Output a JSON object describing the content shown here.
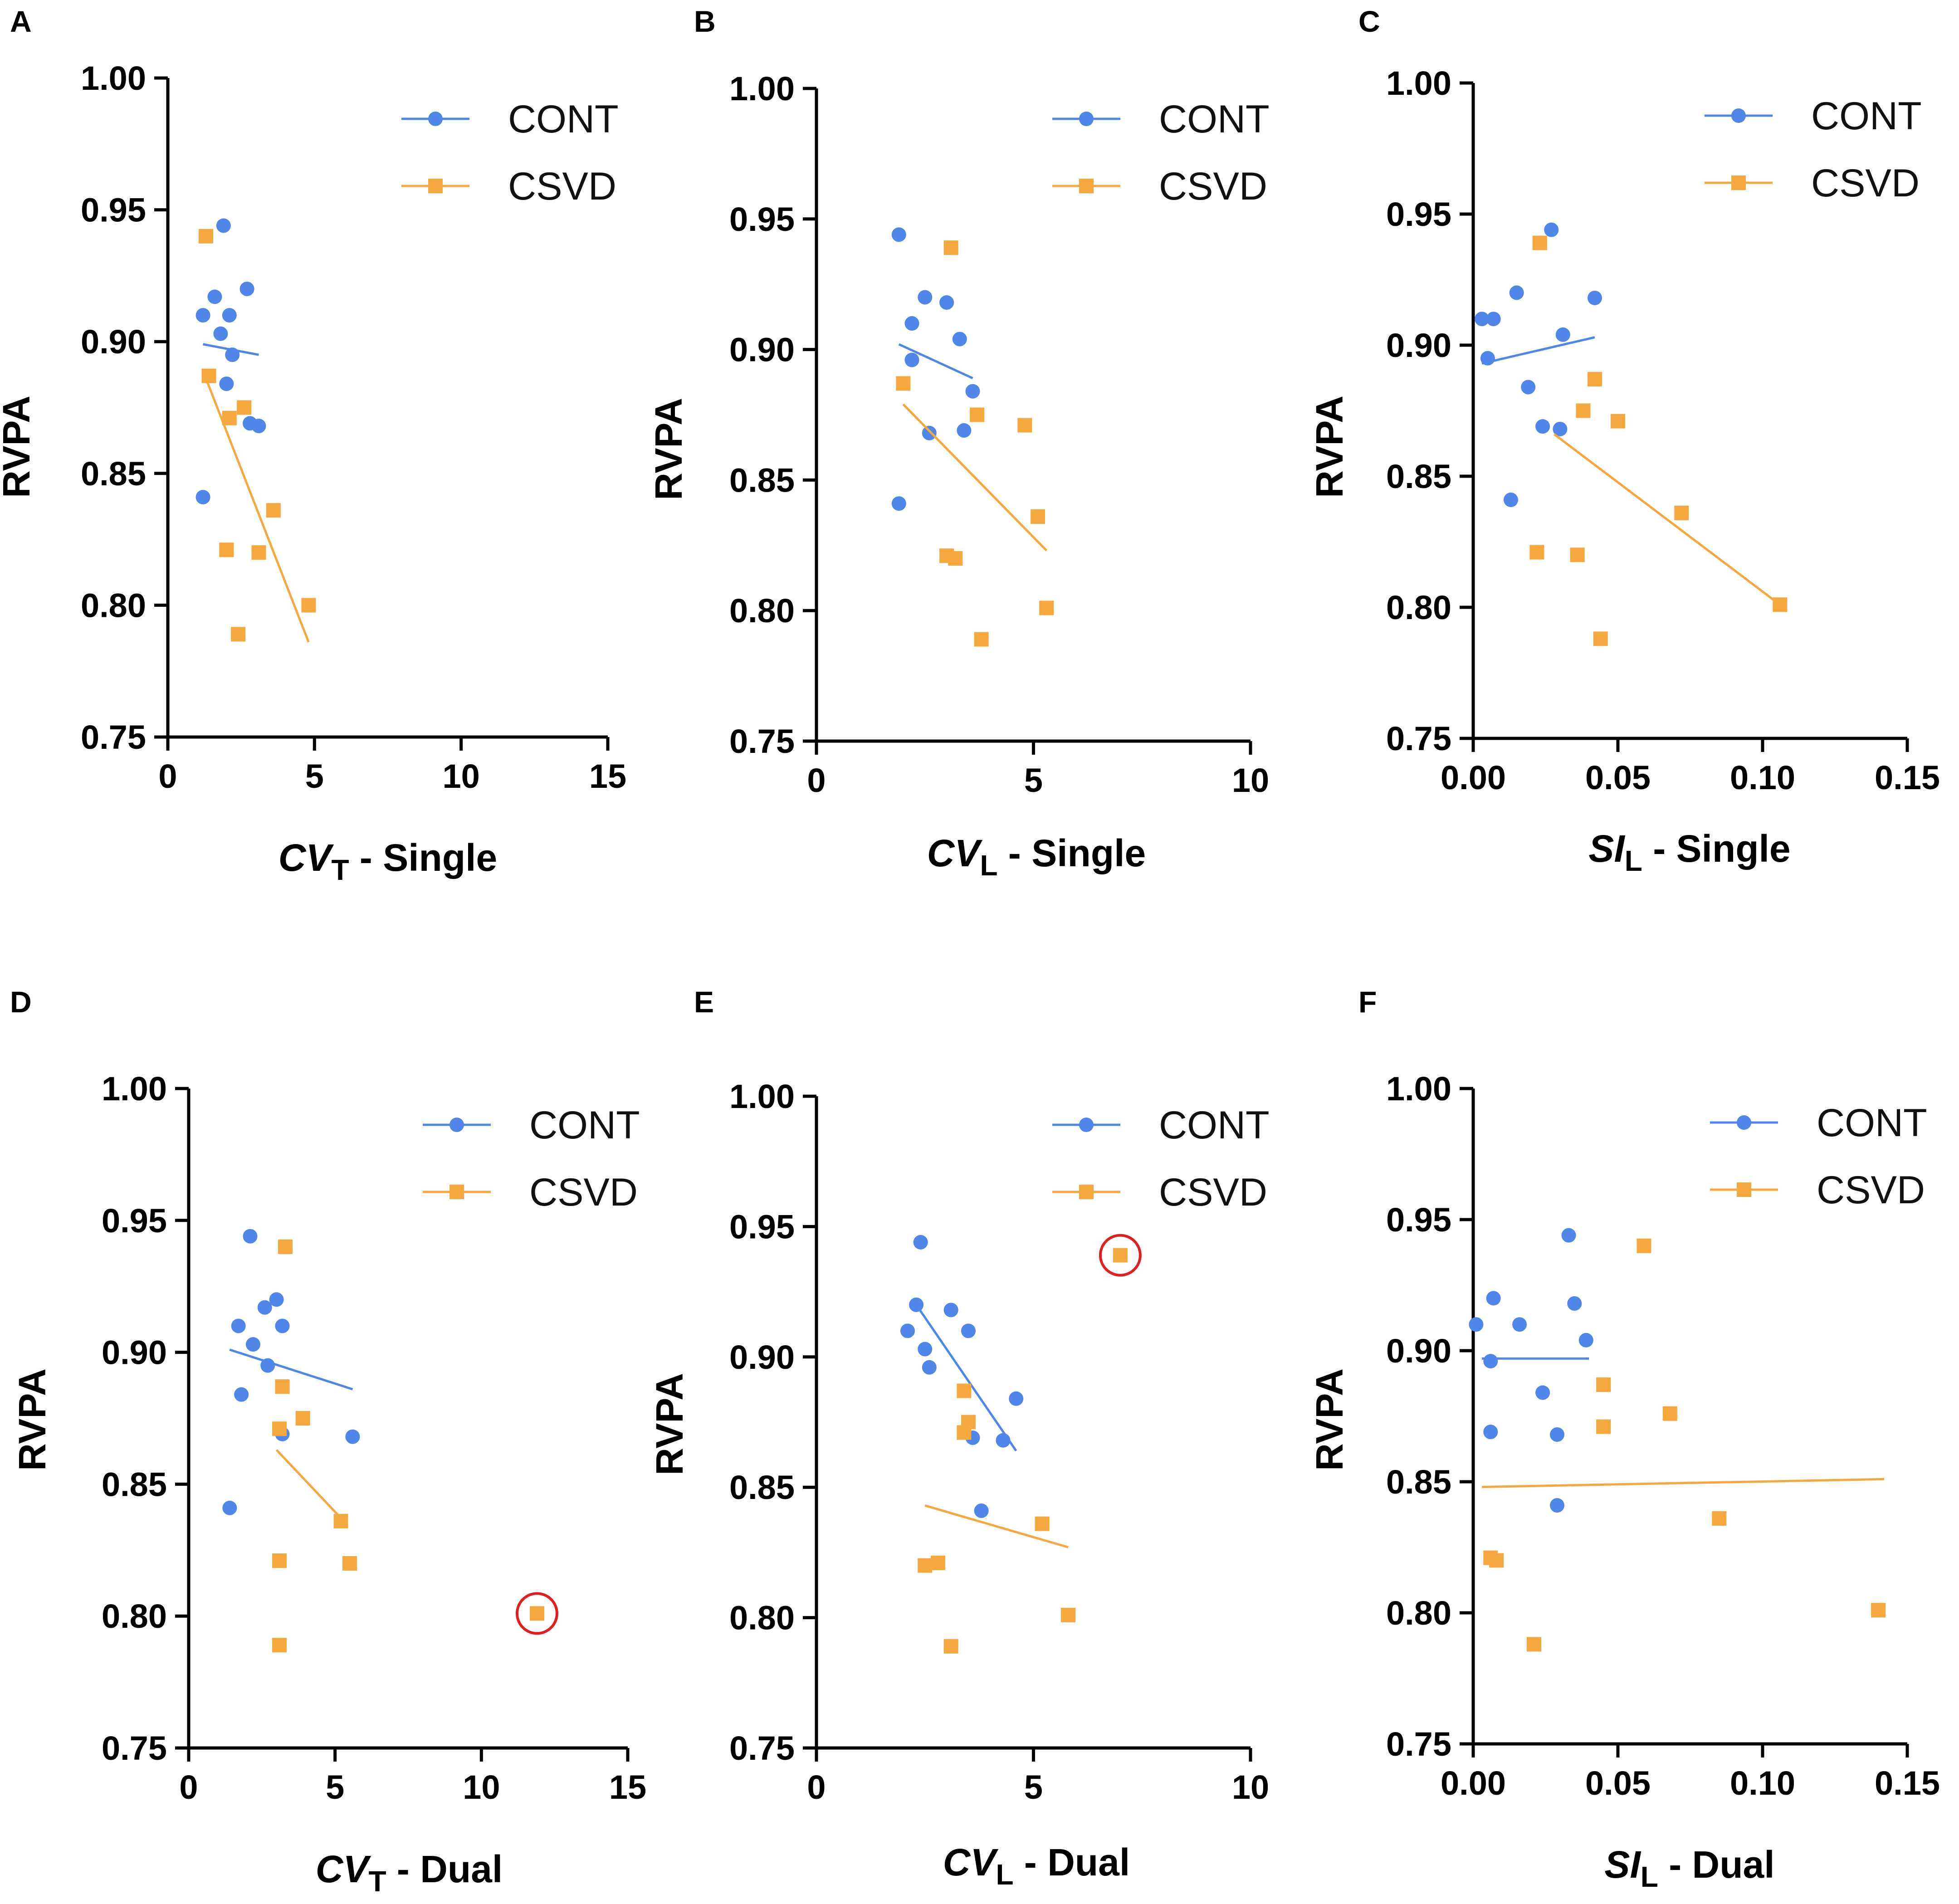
{
  "colors": {
    "cont": "#4f86e8",
    "csvd": "#f5a83e",
    "highlight": "#e02020",
    "axis": "#000000"
  },
  "chart_data": [
    {
      "panel": "A",
      "type": "scatter",
      "ylabel": "RVPA",
      "xlabel_var": "CV",
      "xlabel_sub": "T",
      "xlabel_suffix": " - Single",
      "xlim": [
        0,
        15
      ],
      "ylim": [
        0.75,
        1.0
      ],
      "xticks": [
        0,
        5,
        10,
        15
      ],
      "xtick_labels": [
        "0",
        "5",
        "10",
        "15"
      ],
      "yticks": [
        0.75,
        0.8,
        0.85,
        0.9,
        0.95,
        1.0
      ],
      "ytick_labels": [
        "0.75",
        "0.80",
        "0.85",
        "0.90",
        "0.95",
        "1.00"
      ],
      "legend": [
        "CONT",
        "CSVD"
      ],
      "legend_position": "top-right",
      "series": [
        {
          "name": "CONT",
          "marker": "circle",
          "points": [
            [
              1.2,
              0.91
            ],
            [
              1.6,
              0.917
            ],
            [
              1.9,
              0.944
            ],
            [
              1.8,
              0.903
            ],
            [
              2.1,
              0.91
            ],
            [
              2.7,
              0.92
            ],
            [
              2.2,
              0.895
            ],
            [
              2.0,
              0.884
            ],
            [
              2.8,
              0.869
            ],
            [
              3.1,
              0.868
            ],
            [
              1.2,
              0.841
            ]
          ],
          "fit": [
            [
              1.2,
              0.899
            ],
            [
              3.1,
              0.895
            ]
          ]
        },
        {
          "name": "CSVD",
          "marker": "square",
          "points": [
            [
              1.3,
              0.94
            ],
            [
              1.4,
              0.887
            ],
            [
              2.1,
              0.871
            ],
            [
              2.6,
              0.875
            ],
            [
              2.0,
              0.821
            ],
            [
              3.1,
              0.82
            ],
            [
              3.6,
              0.836
            ],
            [
              4.8,
              0.8
            ],
            [
              2.4,
              0.789
            ]
          ],
          "fit": [
            [
              1.3,
              0.886
            ],
            [
              4.8,
              0.786
            ]
          ]
        }
      ],
      "highlights": []
    },
    {
      "panel": "B",
      "type": "scatter",
      "ylabel": "RVPA",
      "xlabel_var": "CV",
      "xlabel_sub": "L",
      "xlabel_suffix": " - Single",
      "xlim": [
        0,
        10
      ],
      "ylim": [
        0.75,
        1.0
      ],
      "xticks": [
        0,
        5,
        10
      ],
      "xtick_labels": [
        "0",
        "5",
        "10"
      ],
      "yticks": [
        0.75,
        0.8,
        0.85,
        0.9,
        0.95,
        1.0
      ],
      "ytick_labels": [
        "0.75",
        "0.80",
        "0.85",
        "0.90",
        "0.95",
        "1.00"
      ],
      "legend": [
        "CONT",
        "CSVD"
      ],
      "legend_position": "top-right",
      "series": [
        {
          "name": "CONT",
          "marker": "circle",
          "points": [
            [
              1.9,
              0.944
            ],
            [
              2.5,
              0.92
            ],
            [
              3.0,
              0.918
            ],
            [
              2.2,
              0.91
            ],
            [
              3.3,
              0.904
            ],
            [
              2.2,
              0.896
            ],
            [
              3.6,
              0.884
            ],
            [
              2.6,
              0.868
            ],
            [
              3.4,
              0.869
            ],
            [
              1.9,
              0.841
            ]
          ],
          "fit": [
            [
              1.9,
              0.902
            ],
            [
              3.6,
              0.889
            ]
          ]
        },
        {
          "name": "CSVD",
          "marker": "square",
          "points": [
            [
              3.1,
              0.939
            ],
            [
              2.0,
              0.887
            ],
            [
              3.7,
              0.875
            ],
            [
              4.8,
              0.871
            ],
            [
              5.1,
              0.836
            ],
            [
              3.0,
              0.821
            ],
            [
              3.2,
              0.82
            ],
            [
              5.3,
              0.801
            ],
            [
              3.8,
              0.789
            ]
          ],
          "fit": [
            [
              2.0,
              0.879
            ],
            [
              5.3,
              0.823
            ]
          ]
        }
      ],
      "highlights": []
    },
    {
      "panel": "C",
      "type": "scatter",
      "ylabel": "RVPA",
      "xlabel_var": "SI",
      "xlabel_sub": "L",
      "xlabel_suffix": " - Single",
      "xlim": [
        0,
        0.15
      ],
      "ylim": [
        0.75,
        1.0
      ],
      "xticks": [
        0,
        0.05,
        0.1,
        0.15
      ],
      "xtick_labels": [
        "0.00",
        "0.05",
        "0.10",
        "0.15"
      ],
      "yticks": [
        0.75,
        0.8,
        0.85,
        0.9,
        0.95,
        1.0
      ],
      "ytick_labels": [
        "0.75",
        "0.80",
        "0.85",
        "0.90",
        "0.95",
        "1.00"
      ],
      "legend": [
        "CONT",
        "CSVD"
      ],
      "legend_position": "top-right",
      "series": [
        {
          "name": "CONT",
          "marker": "circle",
          "points": [
            [
              0.027,
              0.944
            ],
            [
              0.015,
              0.92
            ],
            [
              0.042,
              0.918
            ],
            [
              0.003,
              0.91
            ],
            [
              0.007,
              0.91
            ],
            [
              0.031,
              0.904
            ],
            [
              0.005,
              0.895
            ],
            [
              0.019,
              0.884
            ],
            [
              0.024,
              0.869
            ],
            [
              0.03,
              0.868
            ],
            [
              0.013,
              0.841
            ]
          ],
          "fit": [
            [
              0.003,
              0.893
            ],
            [
              0.042,
              0.903
            ]
          ]
        },
        {
          "name": "CSVD",
          "marker": "square",
          "points": [
            [
              0.023,
              0.939
            ],
            [
              0.042,
              0.887
            ],
            [
              0.038,
              0.875
            ],
            [
              0.05,
              0.871
            ],
            [
              0.072,
              0.836
            ],
            [
              0.022,
              0.821
            ],
            [
              0.036,
              0.82
            ],
            [
              0.106,
              0.801
            ],
            [
              0.044,
              0.788
            ]
          ],
          "fit": [
            [
              0.028,
              0.866
            ],
            [
              0.106,
              0.801
            ]
          ]
        }
      ],
      "highlights": []
    },
    {
      "panel": "D",
      "type": "scatter",
      "ylabel": "RVPA",
      "xlabel_var": "CV",
      "xlabel_sub": "T",
      "xlabel_suffix": " - Dual",
      "xlim": [
        0,
        15
      ],
      "ylim": [
        0.75,
        1.0
      ],
      "xticks": [
        0,
        5,
        10,
        15
      ],
      "xtick_labels": [
        "0",
        "5",
        "10",
        "15"
      ],
      "yticks": [
        0.75,
        0.8,
        0.85,
        0.9,
        0.95,
        1.0
      ],
      "ytick_labels": [
        "0.75",
        "0.80",
        "0.85",
        "0.90",
        "0.95",
        "1.00"
      ],
      "legend": [
        "CONT",
        "CSVD"
      ],
      "legend_position": "top-right",
      "series": [
        {
          "name": "CONT",
          "marker": "circle",
          "points": [
            [
              2.1,
              0.944
            ],
            [
              2.6,
              0.917
            ],
            [
              3.0,
              0.92
            ],
            [
              1.7,
              0.91
            ],
            [
              3.2,
              0.91
            ],
            [
              2.2,
              0.903
            ],
            [
              2.7,
              0.895
            ],
            [
              1.8,
              0.884
            ],
            [
              3.2,
              0.869
            ],
            [
              5.6,
              0.868
            ],
            [
              1.4,
              0.841
            ]
          ],
          "fit": [
            [
              1.4,
              0.901
            ],
            [
              5.6,
              0.886
            ]
          ]
        },
        {
          "name": "CSVD",
          "marker": "square",
          "points": [
            [
              3.3,
              0.94
            ],
            [
              3.2,
              0.887
            ],
            [
              3.9,
              0.875
            ],
            [
              3.1,
              0.871
            ],
            [
              5.2,
              0.836
            ],
            [
              3.1,
              0.821
            ],
            [
              5.5,
              0.82
            ],
            [
              11.9,
              0.801
            ],
            [
              3.1,
              0.789
            ]
          ],
          "fit": [
            [
              3.0,
              0.863
            ],
            [
              5.3,
              0.836
            ]
          ]
        }
      ],
      "highlights": [
        {
          "series": "CSVD",
          "point": [
            11.9,
            0.801
          ]
        }
      ]
    },
    {
      "panel": "E",
      "type": "scatter",
      "ylabel": "RVPA",
      "xlabel_var": "CV",
      "xlabel_sub": "L",
      "xlabel_suffix": " - Dual",
      "xlim": [
        0,
        10
      ],
      "ylim": [
        0.75,
        1.0
      ],
      "xticks": [
        0,
        5,
        10
      ],
      "xtick_labels": [
        "0",
        "5",
        "10"
      ],
      "yticks": [
        0.75,
        0.8,
        0.85,
        0.9,
        0.95,
        1.0
      ],
      "ytick_labels": [
        "0.75",
        "0.80",
        "0.85",
        "0.90",
        "0.95",
        "1.00"
      ],
      "legend": [
        "CONT",
        "CSVD"
      ],
      "legend_position": "top-right",
      "series": [
        {
          "name": "CONT",
          "marker": "circle",
          "points": [
            [
              2.4,
              0.944
            ],
            [
              2.3,
              0.92
            ],
            [
              3.1,
              0.918
            ],
            [
              2.1,
              0.91
            ],
            [
              3.5,
              0.91
            ],
            [
              2.5,
              0.903
            ],
            [
              2.6,
              0.896
            ],
            [
              4.6,
              0.884
            ],
            [
              3.6,
              0.869
            ],
            [
              4.3,
              0.868
            ],
            [
              3.8,
              0.841
            ]
          ],
          "fit": [
            [
              2.3,
              0.92
            ],
            [
              4.6,
              0.864
            ]
          ]
        },
        {
          "name": "CSVD",
          "marker": "square",
          "points": [
            [
              7.0,
              0.939
            ],
            [
              3.4,
              0.887
            ],
            [
              3.5,
              0.875
            ],
            [
              3.4,
              0.871
            ],
            [
              5.2,
              0.836
            ],
            [
              2.8,
              0.821
            ],
            [
              2.5,
              0.82
            ],
            [
              5.8,
              0.801
            ],
            [
              3.1,
              0.789
            ]
          ],
          "fit": [
            [
              2.5,
              0.843
            ],
            [
              5.8,
              0.827
            ]
          ]
        }
      ],
      "highlights": [
        {
          "series": "CSVD",
          "point": [
            7.0,
            0.939
          ]
        }
      ]
    },
    {
      "panel": "F",
      "type": "scatter",
      "ylabel": "RVPA",
      "xlabel_var": "SI",
      "xlabel_sub": "L",
      "xlabel_suffix": " - Dual",
      "xlim": [
        0,
        0.15
      ],
      "ylim": [
        0.75,
        1.0
      ],
      "xticks": [
        0,
        0.05,
        0.1,
        0.15
      ],
      "xtick_labels": [
        "0.00",
        "0.05",
        "0.10",
        "0.15"
      ],
      "yticks": [
        0.75,
        0.8,
        0.85,
        0.9,
        0.95,
        1.0
      ],
      "ytick_labels": [
        "0.75",
        "0.80",
        "0.85",
        "0.90",
        "0.95",
        "1.00"
      ],
      "legend": [
        "CONT",
        "CSVD"
      ],
      "legend_position": "top-right",
      "series": [
        {
          "name": "CONT",
          "marker": "circle",
          "points": [
            [
              0.033,
              0.944
            ],
            [
              0.007,
              0.92
            ],
            [
              0.035,
              0.918
            ],
            [
              0.001,
              0.91
            ],
            [
              0.016,
              0.91
            ],
            [
              0.039,
              0.904
            ],
            [
              0.006,
              0.896
            ],
            [
              0.024,
              0.884
            ],
            [
              0.006,
              0.869
            ],
            [
              0.029,
              0.868
            ],
            [
              0.029,
              0.841
            ]
          ],
          "fit": [
            [
              0.003,
              0.897
            ],
            [
              0.04,
              0.897
            ]
          ]
        },
        {
          "name": "CSVD",
          "marker": "square",
          "points": [
            [
              0.059,
              0.94
            ],
            [
              0.045,
              0.887
            ],
            [
              0.068,
              0.876
            ],
            [
              0.045,
              0.871
            ],
            [
              0.085,
              0.836
            ],
            [
              0.006,
              0.821
            ],
            [
              0.008,
              0.82
            ],
            [
              0.14,
              0.801
            ],
            [
              0.021,
              0.788
            ]
          ],
          "fit": [
            [
              0.003,
              0.848
            ],
            [
              0.142,
              0.851
            ]
          ]
        }
      ],
      "highlights": []
    }
  ]
}
